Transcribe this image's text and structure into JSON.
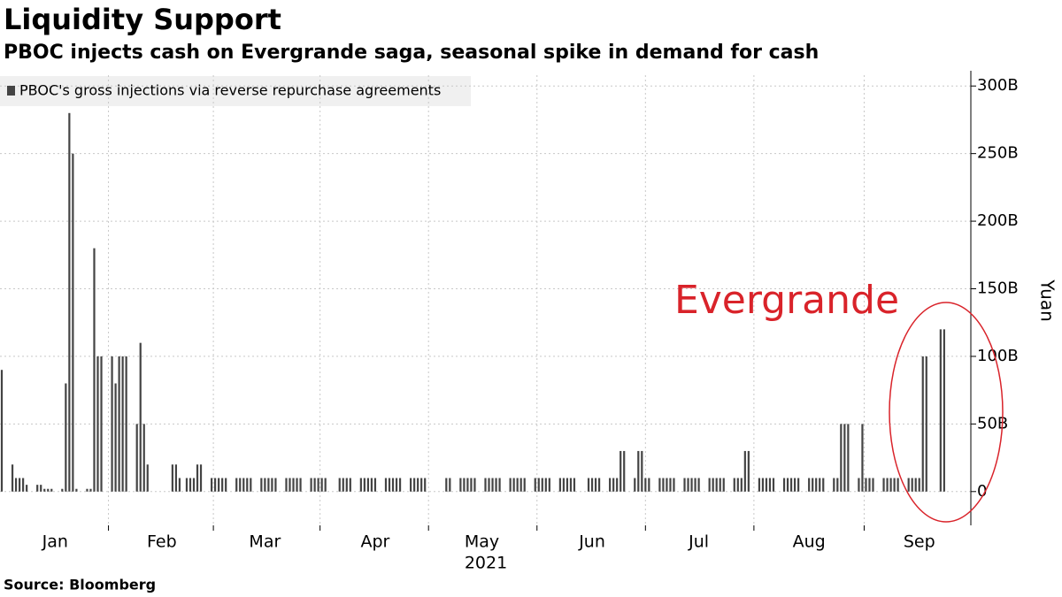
{
  "chart_data": {
    "type": "bar",
    "title": "Liquidity Support",
    "subtitle": "PBOC injects cash on Evergrande saga, seasonal spike in demand for cash",
    "source": "Source: Bloomberg",
    "y_label": "Yuan",
    "x_label": "2021",
    "annotation": "Evergrande",
    "series": [
      {
        "name": "PBOC's gross injections via reverse repurchase agreements",
        "color": "#444444",
        "values": [
          90,
          0,
          0,
          20,
          10,
          10,
          10,
          5,
          0,
          0,
          5,
          5,
          2,
          2,
          2,
          0,
          0,
          2,
          80,
          280,
          250,
          2,
          0,
          0,
          2,
          2,
          180,
          100,
          100,
          0,
          0,
          100,
          80,
          100,
          100,
          100,
          0,
          0,
          50,
          110,
          50,
          20,
          0,
          0,
          0,
          0,
          0,
          0,
          20,
          20,
          10,
          0,
          10,
          10,
          10,
          20,
          20,
          0,
          0,
          10,
          10,
          10,
          10,
          10,
          0,
          0,
          10,
          10,
          10,
          10,
          10,
          0,
          0,
          10,
          10,
          10,
          10,
          10,
          0,
          0,
          10,
          10,
          10,
          10,
          10,
          0,
          0,
          10,
          10,
          10,
          10,
          10,
          0,
          0,
          0,
          10,
          10,
          10,
          10,
          0,
          0,
          10,
          10,
          10,
          10,
          10,
          0,
          0,
          10,
          10,
          10,
          10,
          10,
          0,
          0,
          10,
          10,
          10,
          10,
          10,
          0,
          0,
          0,
          0,
          0,
          10,
          10,
          0,
          0,
          10,
          10,
          10,
          10,
          10,
          0,
          0,
          10,
          10,
          10,
          10,
          10,
          0,
          0,
          10,
          10,
          10,
          10,
          10,
          0,
          0,
          10,
          10,
          10,
          10,
          10,
          0,
          0,
          10,
          10,
          10,
          10,
          10,
          0,
          0,
          0,
          10,
          10,
          10,
          10,
          0,
          0,
          10,
          10,
          10,
          30,
          30,
          0,
          0,
          10,
          30,
          30,
          10,
          10,
          0,
          0,
          10,
          10,
          10,
          10,
          10,
          0,
          0,
          10,
          10,
          10,
          10,
          10,
          0,
          0,
          10,
          10,
          10,
          10,
          10,
          0,
          0,
          10,
          10,
          10,
          30,
          30,
          0,
          0,
          10,
          10,
          10,
          10,
          10,
          0,
          0,
          10,
          10,
          10,
          10,
          10,
          0,
          0,
          10,
          10,
          10,
          10,
          10,
          0,
          0,
          10,
          10,
          50,
          50,
          50,
          0,
          0,
          10,
          50,
          10,
          10,
          10,
          0,
          0,
          10,
          10,
          10,
          10,
          10,
          0,
          0,
          10,
          10,
          10,
          10,
          100,
          100,
          0,
          0,
          0,
          120,
          120,
          0,
          0,
          0,
          0,
          0,
          0,
          0
        ]
      }
    ],
    "categories": [
      null,
      null,
      null,
      null,
      null,
      null,
      null,
      null,
      null,
      null,
      null,
      null,
      null,
      null,
      null,
      "Jan",
      null,
      null,
      null,
      null,
      null,
      null,
      null,
      null,
      null,
      null,
      null,
      null,
      null,
      null,
      null,
      null,
      null,
      null,
      null,
      null,
      null,
      null,
      null,
      null,
      null,
      null,
      null,
      null,
      null,
      "Feb",
      null,
      null,
      null,
      null,
      null,
      null,
      null,
      null,
      null,
      null,
      null,
      null,
      null,
      null,
      null,
      null,
      null,
      null,
      null,
      null,
      null,
      null,
      null,
      null,
      null,
      null,
      null,
      null,
      "Mar",
      null,
      null,
      null,
      null,
      null,
      null,
      null,
      null,
      null,
      null,
      null,
      null,
      null,
      null,
      null,
      null,
      null,
      null,
      null,
      null,
      null,
      null,
      null,
      null,
      null,
      null,
      null,
      null,
      null,
      null,
      "Apr",
      null,
      null,
      null,
      null,
      null,
      null,
      null,
      null,
      null,
      null,
      null,
      null,
      null,
      null,
      null,
      null,
      null,
      null,
      null,
      null,
      null,
      null,
      null,
      null,
      null,
      null,
      null,
      null,
      null,
      "May",
      null,
      null,
      null,
      null,
      null,
      null,
      null,
      null,
      null,
      null,
      null,
      null,
      null,
      null,
      null,
      null,
      null,
      null,
      null,
      null,
      null,
      null,
      null,
      null,
      null,
      null,
      null,
      null,
      null,
      null,
      "Jun",
      null,
      null,
      null,
      null,
      null,
      null,
      null,
      null,
      null,
      null,
      null,
      null,
      null,
      null,
      null,
      null,
      null,
      null,
      null,
      null,
      null,
      null,
      null,
      null,
      null,
      null,
      null,
      null,
      null,
      "Jul",
      null,
      null,
      null,
      null,
      null,
      null,
      null,
      null,
      null,
      null,
      null,
      null,
      null,
      null,
      null,
      null,
      null,
      null,
      null,
      null,
      null,
      null,
      null,
      null,
      null,
      null,
      null,
      null,
      null,
      null,
      "Aug",
      null,
      null,
      null,
      null,
      null,
      null,
      null,
      null,
      null,
      null,
      null,
      null,
      null,
      null,
      null,
      null,
      null,
      null,
      null,
      null,
      null,
      null,
      null,
      null,
      null,
      null,
      null,
      null,
      null,
      null,
      "Sep",
      null,
      null,
      null,
      null,
      null,
      null,
      null,
      null,
      null,
      null,
      null,
      null,
      null,
      null
    ],
    "ylim": [
      -25,
      308
    ],
    "yticks": [
      0,
      {
        "value": 50,
        "label": "50B"
      },
      {
        "value": 100,
        "label": "100B"
      },
      {
        "value": 150,
        "label": "150B"
      },
      {
        "value": 200,
        "label": "200B"
      },
      {
        "value": 250,
        "label": "250B"
      },
      {
        "value": 300,
        "label": "300B"
      }
    ],
    "grid": true,
    "legend": "top-left"
  }
}
